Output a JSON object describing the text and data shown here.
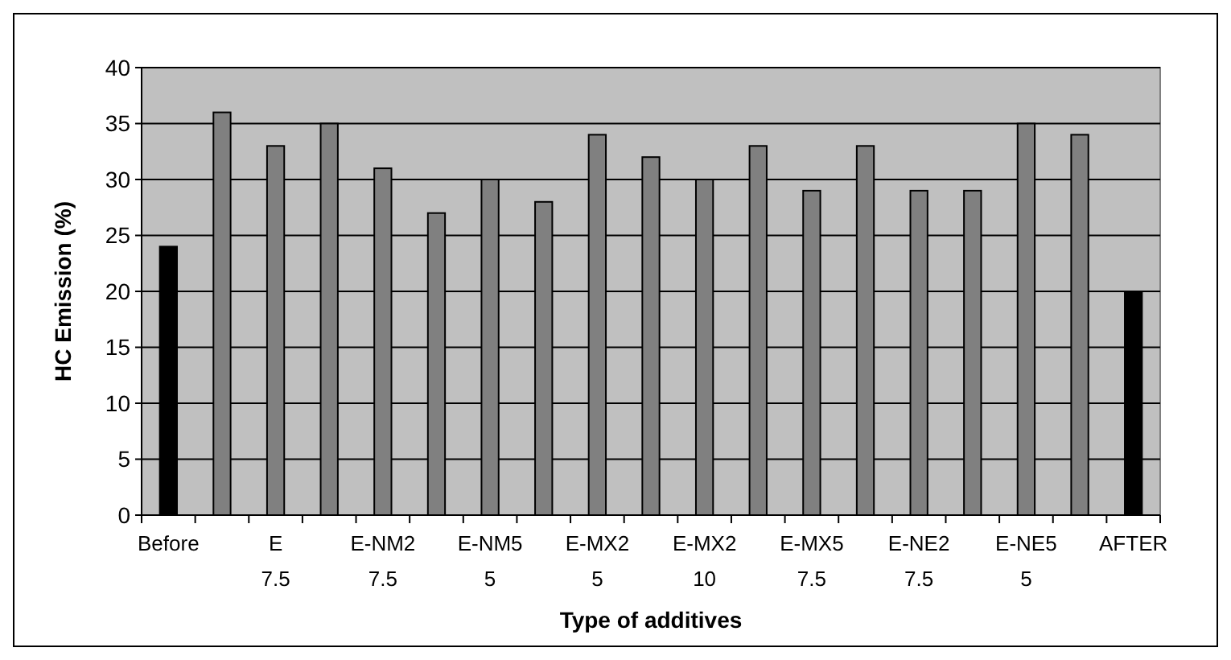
{
  "chart_data": {
    "type": "bar",
    "xlabel": "Type of additives",
    "ylabel": "HC Emission (%)",
    "categories": [
      "Before",
      null,
      "E 7.5",
      null,
      "E-NM2 7.5",
      null,
      "E-NM5 5",
      null,
      "E-MX2 5",
      null,
      "E-MX2 10",
      null,
      "E-MX5 7.5",
      null,
      "E-NE2 7.5",
      null,
      "E-NE5 5",
      null,
      "AFTER"
    ],
    "values": [
      24,
      36,
      33,
      35,
      31,
      27,
      30,
      28,
      34,
      32,
      30,
      33,
      29,
      33,
      29,
      29,
      35,
      34,
      20
    ],
    "colors": [
      "#000000",
      "#808080",
      "#808080",
      "#808080",
      "#808080",
      "#808080",
      "#808080",
      "#808080",
      "#808080",
      "#808080",
      "#808080",
      "#808080",
      "#808080",
      "#808080",
      "#808080",
      "#808080",
      "#808080",
      "#808080",
      "#000000"
    ],
    "ylim": [
      0,
      40
    ],
    "yticks": [
      0,
      5,
      10,
      15,
      20,
      25,
      30,
      35,
      40
    ],
    "grid": "y"
  }
}
